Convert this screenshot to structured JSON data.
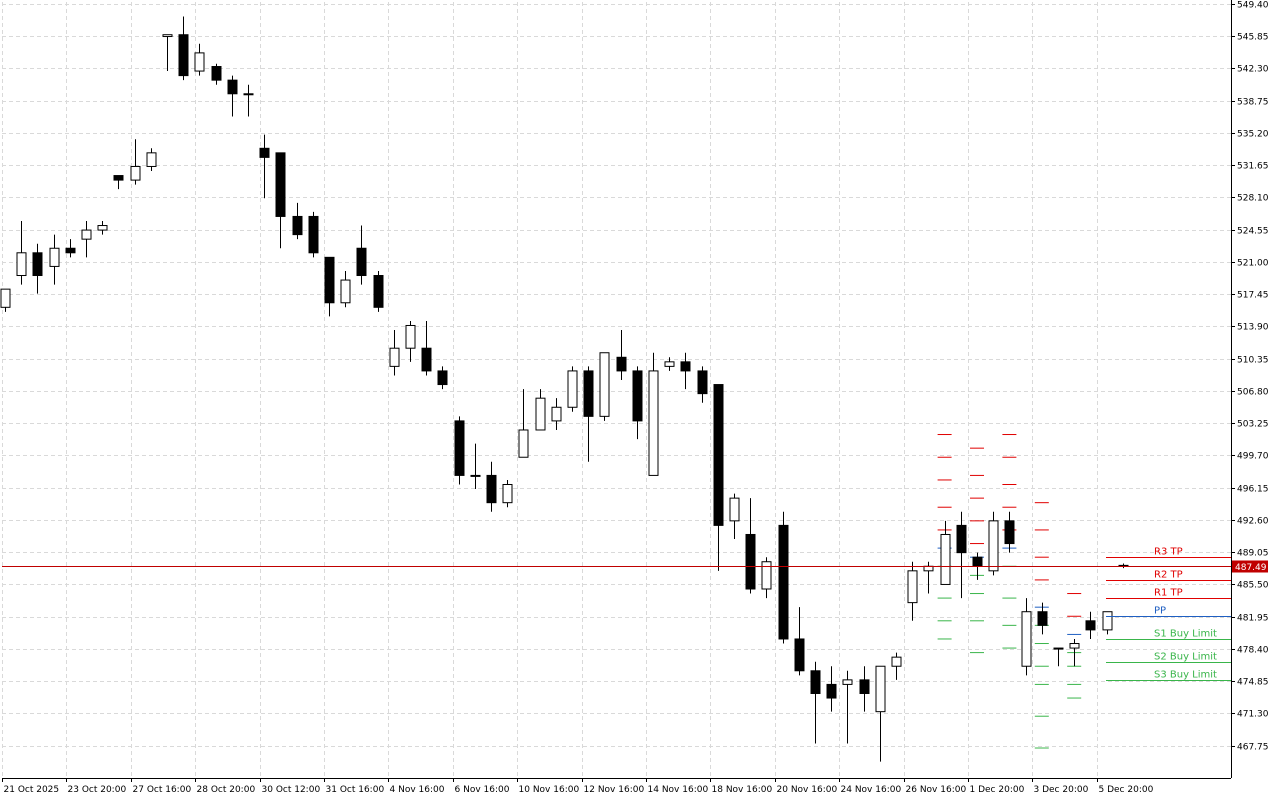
{
  "chart_data": {
    "type": "candlestick",
    "y_ticks": [
      467.75,
      471.3,
      474.85,
      478.4,
      481.95,
      485.5,
      489.05,
      492.6,
      496.15,
      499.7,
      503.25,
      506.8,
      510.35,
      513.9,
      517.45,
      521.0,
      524.55,
      528.1,
      531.65,
      535.2,
      538.75,
      542.3,
      545.85,
      549.4
    ],
    "y_tick_labels": [
      "467.75",
      "471.30",
      "474.85",
      "478.40",
      "481.95",
      "485.50",
      "489.05",
      "492.60",
      "496.15",
      "499.70",
      "503.25",
      "506.80",
      "510.35",
      "513.90",
      "517.45",
      "521.00",
      "524.55",
      "528.10",
      "531.65",
      "535.20",
      "538.75",
      "542.30",
      "545.85",
      "549.40"
    ],
    "x_labels": [
      "21 Oct 2025",
      "23 Oct 20:00",
      "27 Oct 16:00",
      "28 Oct 20:00",
      "30 Oct 12:00",
      "31 Oct 16:00",
      "4 Nov 16:00",
      "6 Nov 16:00",
      "10 Nov 16:00",
      "12 Nov 16:00",
      "14 Nov 16:00",
      "18 Nov 16:00",
      "20 Nov 16:00",
      "24 Nov 16:00",
      "26 Nov 16:00",
      "1 Dec 20:00",
      "3 Dec 20:00",
      "5 Dec 20:00"
    ],
    "candles": [
      {
        "o": 516.0,
        "h": 518.0,
        "l": 515.5,
        "c": 518.0
      },
      {
        "o": 519.5,
        "h": 525.5,
        "l": 518.5,
        "c": 522.0
      },
      {
        "o": 522.0,
        "h": 523.0,
        "l": 517.5,
        "c": 519.5
      },
      {
        "o": 520.5,
        "h": 524.0,
        "l": 518.5,
        "c": 522.5
      },
      {
        "o": 522.5,
        "h": 523.5,
        "l": 521.5,
        "c": 522.0
      },
      {
        "o": 523.5,
        "h": 525.5,
        "l": 521.5,
        "c": 524.5
      },
      {
        "o": 524.5,
        "h": 525.5,
        "l": 524.0,
        "c": 525.0
      },
      {
        "o": 530.5,
        "h": 530.5,
        "l": 529.0,
        "c": 530.0
      },
      {
        "o": 530.0,
        "h": 534.5,
        "l": 529.5,
        "c": 531.5
      },
      {
        "o": 531.5,
        "h": 533.5,
        "l": 531.0,
        "c": 533.0
      },
      {
        "o": 545.8,
        "h": 546.0,
        "l": 542.0,
        "c": 546.0
      },
      {
        "o": 546.0,
        "h": 548.0,
        "l": 541.0,
        "c": 541.5
      },
      {
        "o": 542.0,
        "h": 545.0,
        "l": 541.5,
        "c": 544.0
      },
      {
        "o": 542.5,
        "h": 542.8,
        "l": 540.5,
        "c": 541.0
      },
      {
        "o": 541.0,
        "h": 541.5,
        "l": 537.0,
        "c": 539.5
      },
      {
        "o": 539.5,
        "h": 540.5,
        "l": 537.0,
        "c": 539.5
      },
      {
        "o": 533.5,
        "h": 535.0,
        "l": 528.0,
        "c": 532.5
      },
      {
        "o": 533.0,
        "h": 533.0,
        "l": 522.5,
        "c": 526.0
      },
      {
        "o": 526.0,
        "h": 527.5,
        "l": 523.5,
        "c": 524.0
      },
      {
        "o": 526.0,
        "h": 526.5,
        "l": 521.5,
        "c": 522.0
      },
      {
        "o": 521.5,
        "h": 521.5,
        "l": 515.0,
        "c": 516.5
      },
      {
        "o": 516.5,
        "h": 520.0,
        "l": 516.0,
        "c": 519.0
      },
      {
        "o": 522.5,
        "h": 525.0,
        "l": 518.5,
        "c": 519.5
      },
      {
        "o": 519.5,
        "h": 520.0,
        "l": 515.5,
        "c": 516.0
      },
      {
        "o": 509.5,
        "h": 513.5,
        "l": 508.5,
        "c": 511.5
      },
      {
        "o": 511.5,
        "h": 514.5,
        "l": 510.0,
        "c": 514.0
      },
      {
        "o": 511.5,
        "h": 514.5,
        "l": 508.5,
        "c": 509.0
      },
      {
        "o": 509.0,
        "h": 509.5,
        "l": 507.0,
        "c": 507.5
      },
      {
        "o": 503.5,
        "h": 504.0,
        "l": 496.5,
        "c": 497.5
      },
      {
        "o": 497.5,
        "h": 501.0,
        "l": 496.0,
        "c": 497.5
      },
      {
        "o": 497.5,
        "h": 499.0,
        "l": 493.5,
        "c": 494.5
      },
      {
        "o": 494.5,
        "h": 497.0,
        "l": 494.0,
        "c": 496.5
      },
      {
        "o": 499.5,
        "h": 507.0,
        "l": 499.5,
        "c": 502.5
      },
      {
        "o": 502.5,
        "h": 507.0,
        "l": 502.5,
        "c": 506.0
      },
      {
        "o": 503.5,
        "h": 506.0,
        "l": 502.5,
        "c": 505.0
      },
      {
        "o": 505.0,
        "h": 509.5,
        "l": 504.5,
        "c": 509.0
      },
      {
        "o": 509.0,
        "h": 509.5,
        "l": 499.0,
        "c": 504.0
      },
      {
        "o": 504.0,
        "h": 511.0,
        "l": 503.5,
        "c": 511.0
      },
      {
        "o": 510.5,
        "h": 513.5,
        "l": 508.0,
        "c": 509.0
      },
      {
        "o": 509.0,
        "h": 509.5,
        "l": 501.5,
        "c": 503.5
      },
      {
        "o": 497.5,
        "h": 511.0,
        "l": 497.5,
        "c": 509.0
      },
      {
        "o": 509.5,
        "h": 510.5,
        "l": 509.0,
        "c": 510.0
      },
      {
        "o": 510.0,
        "h": 511.0,
        "l": 507.0,
        "c": 509.0
      },
      {
        "o": 509.0,
        "h": 509.5,
        "l": 505.5,
        "c": 506.5
      },
      {
        "o": 507.5,
        "h": 507.5,
        "l": 487.0,
        "c": 492.0
      },
      {
        "o": 492.5,
        "h": 495.5,
        "l": 490.5,
        "c": 495.0
      },
      {
        "o": 491.0,
        "h": 495.0,
        "l": 484.5,
        "c": 485.0
      },
      {
        "o": 485.0,
        "h": 488.5,
        "l": 484.0,
        "c": 488.0
      },
      {
        "o": 492.0,
        "h": 493.5,
        "l": 479.0,
        "c": 479.5
      },
      {
        "o": 479.5,
        "h": 483.0,
        "l": 475.5,
        "c": 476.0
      },
      {
        "o": 476.0,
        "h": 477.0,
        "l": 468.0,
        "c": 473.5
      },
      {
        "o": 474.5,
        "h": 476.5,
        "l": 471.5,
        "c": 473.0
      },
      {
        "o": 474.5,
        "h": 476.0,
        "l": 468.0,
        "c": 475.0
      },
      {
        "o": 475.0,
        "h": 476.5,
        "l": 471.5,
        "c": 473.5
      },
      {
        "o": 471.5,
        "h": 476.5,
        "l": 466.0,
        "c": 476.5
      },
      {
        "o": 476.5,
        "h": 478.0,
        "l": 475.0,
        "c": 477.5
      },
      {
        "o": 483.5,
        "h": 488.0,
        "l": 481.5,
        "c": 487.0
      },
      {
        "o": 487.0,
        "h": 488.0,
        "l": 484.5,
        "c": 487.5
      },
      {
        "o": 485.5,
        "h": 492.5,
        "l": 485.5,
        "c": 491.0
      },
      {
        "o": 492.0,
        "h": 493.5,
        "l": 484.0,
        "c": 489.0
      },
      {
        "o": 488.5,
        "h": 489.0,
        "l": 486.0,
        "c": 487.5
      },
      {
        "o": 487.0,
        "h": 493.5,
        "l": 486.5,
        "c": 492.5
      },
      {
        "o": 492.5,
        "h": 493.5,
        "l": 489.0,
        "c": 490.0
      },
      {
        "o": 476.5,
        "h": 484.0,
        "l": 475.5,
        "c": 482.5
      },
      {
        "o": 482.5,
        "h": 483.5,
        "l": 480.0,
        "c": 481.0
      },
      {
        "o": 478.5,
        "h": 478.5,
        "l": 476.5,
        "c": 478.5
      },
      {
        "o": 478.5,
        "h": 479.5,
        "l": 476.5,
        "c": 479.0
      },
      {
        "o": 481.5,
        "h": 482.5,
        "l": 479.5,
        "c": 480.5
      },
      {
        "o": 480.5,
        "h": 482.5,
        "l": 480.0,
        "c": 482.5
      },
      {
        "o": 487.5,
        "h": 487.8,
        "l": 487.3,
        "c": 487.6
      }
    ],
    "pivot_history": [
      {
        "candle": 58,
        "pivot": 489.5,
        "r": [
          491.5,
          494.0,
          497.0,
          499.5,
          502.0
        ],
        "s": [
          487.5,
          484.0,
          481.5,
          479.5
        ]
      },
      {
        "candle": 60,
        "pivot": 488.5,
        "r": [
          490.0,
          492.5,
          495.0,
          497.5,
          500.5
        ],
        "s": [
          486.5,
          484.5,
          481.5,
          478.0
        ]
      },
      {
        "candle": 62,
        "pivot": 489.5,
        "r": [
          491.5,
          494.0,
          496.5,
          499.5,
          502.0
        ],
        "s": [
          487.5,
          484.0,
          481.0,
          478.5
        ]
      },
      {
        "candle": 64,
        "pivot": 483.0,
        "r": [
          486.0,
          488.5,
          491.5,
          494.5
        ],
        "s": [
          481.0,
          479.0,
          476.5,
          474.5,
          471.0,
          467.5
        ]
      },
      {
        "candle": 66,
        "pivot": 480.0,
        "r": [
          482.0,
          484.5
        ],
        "s": [
          478.0,
          476.5,
          474.5,
          473.0
        ]
      }
    ],
    "current_price": 487.49,
    "current_price_label": "487.49",
    "levels": [
      {
        "name": "R3 TP",
        "value": 488.5,
        "color": "#e00000"
      },
      {
        "name": "R2 TP",
        "value": 486.0,
        "color": "#e00000"
      },
      {
        "name": "R1 TP",
        "value": 484.0,
        "color": "#e00000"
      },
      {
        "name": "PP",
        "value": 482.0,
        "color": "#1f5fc2"
      },
      {
        "name": "S1 Buy Limit",
        "value": 479.5,
        "color": "#39b54a"
      },
      {
        "name": "S2 Buy Limit",
        "value": 477.0,
        "color": "#39b54a"
      },
      {
        "name": "S3 Buy Limit",
        "value": 475.0,
        "color": "#39b54a"
      }
    ],
    "ylim": [
      464.2,
      549.6
    ],
    "grid": true,
    "colors": {
      "bull_body": "#ffffff",
      "bear_body": "#000000",
      "grid": "#d9d9d9",
      "price_line": "#c00000",
      "price_tag": "#c00000"
    }
  }
}
